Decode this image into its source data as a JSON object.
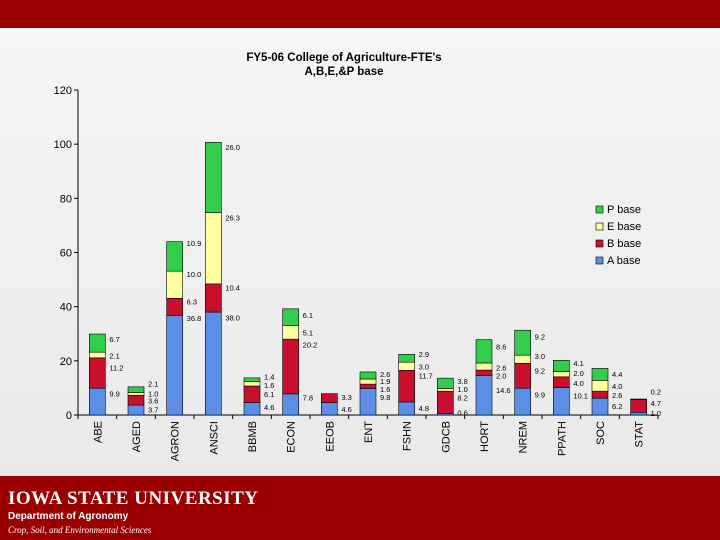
{
  "footer": {
    "university": "IOWA STATE UNIVERSITY",
    "department": "Department of Agronomy",
    "subtitle": "Crop, Soil, and Environmental Sciences"
  },
  "colors": {
    "A base": "#5b8ee6",
    "B base": "#c8102e",
    "E base": "#ffffa0",
    "P base": "#33cc4c"
  },
  "chart_data": {
    "type": "bar",
    "stacked": true,
    "title": "FY5-06 College of Agriculture-FTE's",
    "subtitle": "A,B,E,&P base",
    "xlabel": "",
    "ylabel": "",
    "ylim": [
      0,
      120
    ],
    "yticks": [
      0,
      20,
      40,
      60,
      80,
      100,
      120
    ],
    "grid": false,
    "legend": "right",
    "categories": [
      "ABE",
      "AGED",
      "AGRON",
      "ANSCI",
      "BBMB",
      "ECON",
      "EEOB",
      "ENT",
      "FSHN",
      "GDCB",
      "HORT",
      "NREM",
      "PPATH",
      "SOC",
      "STAT"
    ],
    "series": [
      {
        "name": "A base",
        "values": [
          9.9,
          3.7,
          36.8,
          38.0,
          4.6,
          7.8,
          4.6,
          9.8,
          4.8,
          0.6,
          14.6,
          9.9,
          10.1,
          6.2,
          1.0
        ]
      },
      {
        "name": "B base",
        "values": [
          11.2,
          3.6,
          6.3,
          10.4,
          6.1,
          20.2,
          3.3,
          1.6,
          11.7,
          8.2,
          2.0,
          9.2,
          4.0,
          2.6,
          4.7
        ]
      },
      {
        "name": "E base",
        "values": [
          2.1,
          1.0,
          10.0,
          26.3,
          1.6,
          5.1,
          0.0,
          1.9,
          3.0,
          1.0,
          2.6,
          3.0,
          2.0,
          4.0,
          0.0
        ]
      },
      {
        "name": "P base",
        "values": [
          6.7,
          2.1,
          10.9,
          26.0,
          1.4,
          6.1,
          0.0,
          2.6,
          2.9,
          3.8,
          8.6,
          9.2,
          4.1,
          4.4,
          0.2
        ]
      }
    ],
    "data_labels": [
      {
        "text": "9.9",
        "cat": 0,
        "y": 8.0
      },
      {
        "text": "11.2",
        "cat": 0,
        "y": 17.5
      },
      {
        "text": "2.1",
        "cat": 0,
        "y": 22.0
      },
      {
        "text": "6.7",
        "cat": 0,
        "y": 28.0
      },
      {
        "text": "3.7",
        "cat": 1,
        "y": 2.0
      },
      {
        "text": "3.6",
        "cat": 1,
        "y": 5.3
      },
      {
        "text": "1.0",
        "cat": 1,
        "y": 8.0
      },
      {
        "text": "2.1",
        "cat": 1,
        "y": 11.6
      },
      {
        "text": "36.8",
        "cat": 2,
        "y": 35.8
      },
      {
        "text": "6.3",
        "cat": 2,
        "y": 42.0
      },
      {
        "text": "10.0",
        "cat": 2,
        "y": 52.0
      },
      {
        "text": "10.9",
        "cat": 2,
        "y": 63.5
      },
      {
        "text": "38.0",
        "cat": 3,
        "y": 36.0
      },
      {
        "text": "10.4",
        "cat": 3,
        "y": 47.0
      },
      {
        "text": "26.3",
        "cat": 3,
        "y": 73.0
      },
      {
        "text": "26.0",
        "cat": 3,
        "y": 99.0
      },
      {
        "text": "4.6",
        "cat": 4,
        "y": 3.0
      },
      {
        "text": "6.1",
        "cat": 4,
        "y": 7.8
      },
      {
        "text": "1.6",
        "cat": 4,
        "y": 11.0
      },
      {
        "text": "1.4",
        "cat": 4,
        "y": 14.2
      },
      {
        "text": "7.8",
        "cat": 5,
        "y": 6.5
      },
      {
        "text": "20.2",
        "cat": 5,
        "y": 26.0
      },
      {
        "text": "5.1",
        "cat": 5,
        "y": 30.5
      },
      {
        "text": "6.1",
        "cat": 5,
        "y": 37.0
      },
      {
        "text": "4.6",
        "cat": 6,
        "y": 2.2
      },
      {
        "text": "3.3",
        "cat": 6,
        "y": 6.6
      },
      {
        "text": "9.8",
        "cat": 7,
        "y": 6.7
      },
      {
        "text": "1.6",
        "cat": 7,
        "y": 9.6
      },
      {
        "text": "1.9",
        "cat": 7,
        "y": 12.5
      },
      {
        "text": "2.6",
        "cat": 7,
        "y": 15.2
      },
      {
        "text": "4.8",
        "cat": 8,
        "y": 2.6
      },
      {
        "text": "11.7",
        "cat": 8,
        "y": 14.5
      },
      {
        "text": "3.0",
        "cat": 8,
        "y": 18.0
      },
      {
        "text": "2.9",
        "cat": 8,
        "y": 22.5
      },
      {
        "text": "0.6",
        "cat": 9,
        "y": 0.9
      },
      {
        "text": "8.2",
        "cat": 9,
        "y": 6.5
      },
      {
        "text": "1.0",
        "cat": 9,
        "y": 9.6
      },
      {
        "text": "3.8",
        "cat": 9,
        "y": 12.5
      },
      {
        "text": "14.6",
        "cat": 10,
        "y": 9.3
      },
      {
        "text": "2.0",
        "cat": 10,
        "y": 14.6
      },
      {
        "text": "2.6",
        "cat": 10,
        "y": 17.6
      },
      {
        "text": "8.6",
        "cat": 10,
        "y": 25.3
      },
      {
        "text": "9.9",
        "cat": 11,
        "y": 7.6
      },
      {
        "text": "9.2",
        "cat": 11,
        "y": 16.5
      },
      {
        "text": "3.0",
        "cat": 11,
        "y": 21.8
      },
      {
        "text": "9.2",
        "cat": 11,
        "y": 29.0
      },
      {
        "text": "10.1",
        "cat": 12,
        "y": 7.2
      },
      {
        "text": "4.0",
        "cat": 12,
        "y": 11.9
      },
      {
        "text": "2.0",
        "cat": 12,
        "y": 15.5
      },
      {
        "text": "4.1",
        "cat": 12,
        "y": 19.2
      },
      {
        "text": "6.2",
        "cat": 13,
        "y": 3.3
      },
      {
        "text": "2.6",
        "cat": 13,
        "y": 7.4
      },
      {
        "text": "4.0",
        "cat": 13,
        "y": 10.8
      },
      {
        "text": "4.4",
        "cat": 13,
        "y": 15.2
      },
      {
        "text": "1.0",
        "cat": 14,
        "y": 0.7
      },
      {
        "text": "4.7",
        "cat": 14,
        "y": 4.4
      },
      {
        "text": "0.2",
        "cat": 14,
        "y": 8.7
      }
    ]
  }
}
